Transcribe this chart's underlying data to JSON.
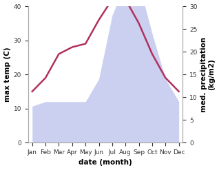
{
  "months": [
    "Jan",
    "Feb",
    "Mar",
    "Apr",
    "May",
    "Jun",
    "Jul",
    "Aug",
    "Sep",
    "Oct",
    "Nov",
    "Dec"
  ],
  "max_temp": [
    15,
    19,
    26,
    28,
    29,
    36,
    42,
    42,
    35,
    26,
    19,
    15
  ],
  "precipitation": [
    8,
    9,
    9,
    9,
    9,
    14,
    28,
    35,
    35,
    24,
    14,
    9
  ],
  "temp_color": "#b03060",
  "precip_color_fill": "#b0b8e8",
  "temp_ylim": [
    0,
    40
  ],
  "precip_ylim": [
    0,
    30
  ],
  "xlabel": "date (month)",
  "ylabel_left": "max temp (C)",
  "ylabel_right": "med. precipitation\n(kg/m2)",
  "bg_color": "#ffffff",
  "tick_fontsize": 6.5,
  "label_fontsize": 7.5
}
